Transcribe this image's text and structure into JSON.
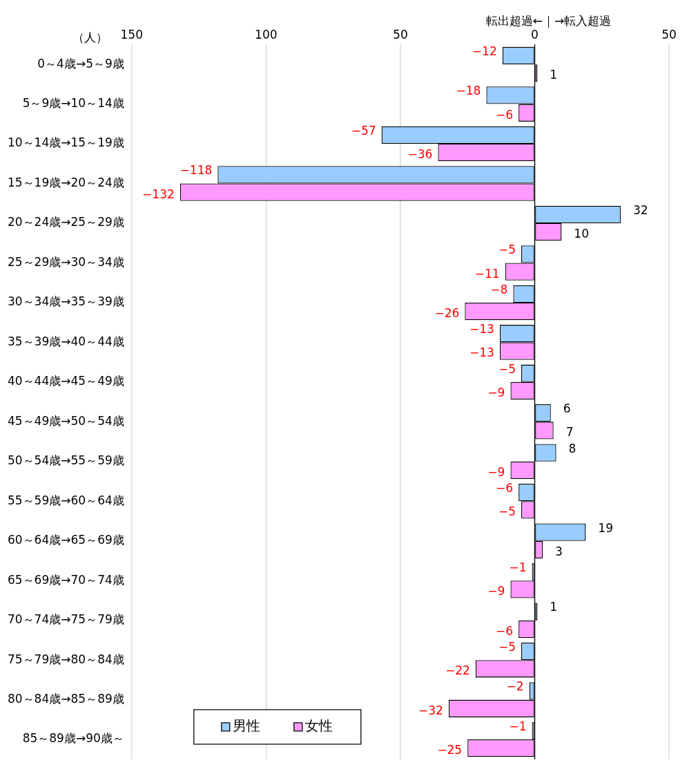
{
  "chart_data": {
    "type": "bar",
    "orientation": "horizontal",
    "categories": [
      "0～4歳→5～9歳",
      "5～9歳→10～14歳",
      "10～14歳→15～19歳",
      "15～19歳→20～24歳",
      "20～24歳→25～29歳",
      "25～29歳→30～34歳",
      "30～34歳→35～39歳",
      "35～39歳→40～44歳",
      "40～44歳→45～49歳",
      "45～49歳→50～54歳",
      "50～54歳→55～59歳",
      "55～59歳→60～64歳",
      "60～64歳→65～69歳",
      "65～69歳→70～74歳",
      "70～74歳→75～79歳",
      "75～79歳→80～84歳",
      "80～84歳→85～89歳",
      "85～89歳→90歳～"
    ],
    "series": [
      {
        "name": "男性",
        "color": "#99ccff",
        "values": [
          -12,
          -18,
          -57,
          -118,
          32,
          -5,
          -8,
          -13,
          -5,
          6,
          8,
          -6,
          19,
          -1,
          1,
          -5,
          -2,
          -1
        ]
      },
      {
        "name": "女性",
        "color": "#ff99ff",
        "values": [
          1,
          -6,
          -36,
          -132,
          10,
          -11,
          -26,
          -13,
          -9,
          7,
          -9,
          -5,
          3,
          -9,
          -6,
          -22,
          -32,
          -25
        ]
      }
    ],
    "xlim": [
      -150,
      50
    ],
    "xticks": [
      {
        "value": -150,
        "label": "150"
      },
      {
        "value": -100,
        "label": "100"
      },
      {
        "value": -50,
        "label": "50"
      },
      0,
      50
    ],
    "grid": "x",
    "legend": "bottom left",
    "data_labels": true,
    "annotations": [
      "（人）",
      "転出超過←｜→転入超過"
    ]
  }
}
